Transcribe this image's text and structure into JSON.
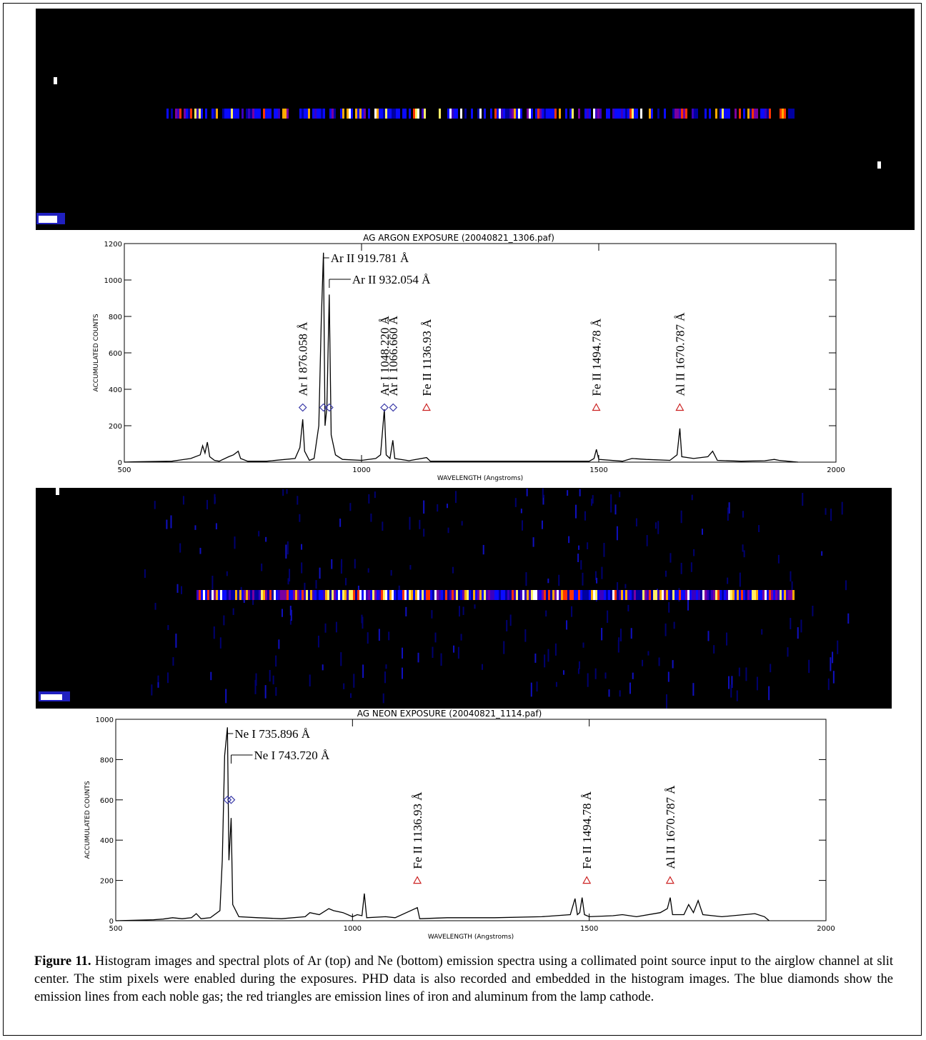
{
  "chart_data": [
    {
      "type": "line",
      "title": "AG ARGON EXPOSURE (20040821_1306.paf)",
      "x_label": "WAVELENGTH (Angstroms)",
      "y_label": "ACCUMULATED COUNTS",
      "xlim": [
        500,
        2000
      ],
      "ylim": [
        0,
        1200
      ],
      "xticks": [
        500,
        1000,
        1500,
        2000
      ],
      "yticks": [
        0,
        200,
        400,
        600,
        800,
        1000,
        1200
      ],
      "color": "#000000",
      "x": [
        500,
        520,
        600,
        640,
        660,
        665,
        670,
        675,
        680,
        690,
        700,
        720,
        730,
        740,
        745,
        760,
        800,
        860,
        870,
        876,
        880,
        890,
        900,
        910,
        915,
        919.8,
        923,
        927,
        932,
        936,
        945,
        960,
        1000,
        1030,
        1040,
        1048,
        1052,
        1060,
        1066,
        1070,
        1100,
        1137,
        1145,
        1300,
        1480,
        1490,
        1495,
        1500,
        1550,
        1570,
        1600,
        1650,
        1665,
        1671,
        1675,
        1700,
        1730,
        1740,
        1750,
        1800,
        1850,
        1870,
        1880,
        1920
      ],
      "values": [
        0,
        2,
        5,
        20,
        40,
        90,
        50,
        110,
        30,
        10,
        5,
        30,
        40,
        60,
        20,
        5,
        5,
        20,
        80,
        235,
        60,
        10,
        20,
        200,
        770,
        1150,
        200,
        300,
        920,
        150,
        40,
        15,
        10,
        20,
        40,
        290,
        40,
        20,
        120,
        20,
        8,
        25,
        5,
        5,
        5,
        20,
        70,
        15,
        5,
        20,
        15,
        10,
        40,
        185,
        30,
        20,
        30,
        60,
        10,
        5,
        8,
        15,
        10,
        0
      ],
      "annotations": [
        {
          "label": "Ar I 876.058 Å",
          "x": 876.058,
          "y": 300,
          "marker": "diamond",
          "color": "#3a3aa8",
          "style": "rotated"
        },
        {
          "label": "Ar II 919.781 Å",
          "x": 919.781,
          "y": 300,
          "marker": "diamond",
          "color": "#3a3aa8",
          "style": "leader"
        },
        {
          "label": "Ar II 932.054 Å",
          "x": 932.054,
          "y": 300,
          "marker": "diamond",
          "color": "#3a3aa8",
          "style": "leader"
        },
        {
          "label": "Ar I 1048.220 Å",
          "x": 1048.22,
          "y": 300,
          "marker": "diamond",
          "color": "#3a3aa8",
          "style": "rotated"
        },
        {
          "label": "Ar I 1066.660 Å",
          "x": 1066.66,
          "y": 300,
          "marker": "diamond",
          "color": "#3a3aa8",
          "style": "rotated"
        },
        {
          "label": "Fe II 1136.93 Å",
          "x": 1136.93,
          "y": 300,
          "marker": "triangle",
          "color": "#cc2222",
          "style": "rotated"
        },
        {
          "label": "Fe II 1494.78 Å",
          "x": 1494.78,
          "y": 300,
          "marker": "triangle",
          "color": "#cc2222",
          "style": "rotated"
        },
        {
          "label": "Al II 1670.787 Å",
          "x": 1670.787,
          "y": 300,
          "marker": "triangle",
          "color": "#cc2222",
          "style": "rotated"
        }
      ]
    },
    {
      "type": "line",
      "title": "AG NEON EXPOSURE (20040821_1114.paf)",
      "x_label": "WAVELENGTH (Angstroms)",
      "y_label": "ACCUMULATED COUNTS",
      "xlim": [
        500,
        2000
      ],
      "ylim": [
        0,
        1000
      ],
      "xticks": [
        500,
        1000,
        1500,
        2000
      ],
      "yticks": [
        0,
        200,
        400,
        600,
        800,
        1000
      ],
      "color": "#000000",
      "x": [
        500,
        580,
        600,
        620,
        640,
        660,
        670,
        680,
        700,
        720,
        725,
        730,
        735.9,
        739,
        743.7,
        747,
        760,
        800,
        850,
        900,
        910,
        930,
        950,
        960,
        980,
        1000,
        1010,
        1020,
        1025,
        1030,
        1070,
        1090,
        1137,
        1142,
        1200,
        1300,
        1400,
        1460,
        1470,
        1475,
        1480,
        1485,
        1490,
        1500,
        1550,
        1570,
        1600,
        1650,
        1665,
        1671,
        1676,
        1700,
        1710,
        1720,
        1730,
        1740,
        1780,
        1850,
        1870,
        1880
      ],
      "values": [
        0,
        5,
        8,
        15,
        10,
        15,
        35,
        10,
        15,
        50,
        300,
        820,
        960,
        300,
        510,
        80,
        20,
        15,
        10,
        20,
        40,
        30,
        60,
        50,
        40,
        20,
        30,
        25,
        135,
        15,
        20,
        15,
        65,
        10,
        15,
        15,
        20,
        30,
        110,
        30,
        40,
        115,
        30,
        20,
        25,
        30,
        20,
        40,
        60,
        115,
        30,
        30,
        80,
        40,
        100,
        30,
        20,
        35,
        20,
        0
      ],
      "annotations": [
        {
          "label": "Ne I 735.896 Å",
          "x": 735.896,
          "y": 600,
          "marker": "diamond",
          "color": "#3a3aa8",
          "style": "leader"
        },
        {
          "label": "Ne I 743.720 Å",
          "x": 743.72,
          "y": 600,
          "marker": "diamond",
          "color": "#3a3aa8",
          "style": "leader"
        },
        {
          "label": "Fe II 1136.93 Å",
          "x": 1136.93,
          "y": 200,
          "marker": "triangle",
          "color": "#cc2222",
          "style": "rotated"
        },
        {
          "label": "Fe II 1494.78 Å",
          "x": 1494.78,
          "y": 200,
          "marker": "triangle",
          "color": "#cc2222",
          "style": "rotated"
        },
        {
          "label": "Al II 1670.787 Å",
          "x": 1670.787,
          "y": 200,
          "marker": "triangle",
          "color": "#cc2222",
          "style": "rotated"
        }
      ]
    }
  ],
  "caption": {
    "label": "Figure 11.",
    "text": "Histogram images and spectral plots of Ar (top) and Ne (bottom) emission spectra using a collimated point source input to the airglow channel at slit center. The stim pixels were enabled during the exposures. PHD data is also recorded and embedded in the histogram images. The blue diamonds show the emission lines from each noble gas; the red triangles are emission lines of iron and aluminum from the lamp cathode."
  }
}
